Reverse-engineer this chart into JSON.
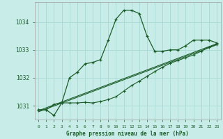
{
  "title": "Graphe pression niveau de la mer (hPa)",
  "background_color": "#c8ece8",
  "grid_color": "#a8d8d4",
  "line_color": "#1a5c28",
  "xlim": [
    -0.5,
    23.5
  ],
  "ylim": [
    1030.5,
    1034.7
  ],
  "yticks": [
    1031,
    1032,
    1033,
    1034
  ],
  "xtick_labels": [
    "0",
    "1",
    "2",
    "3",
    "4",
    "5",
    "6",
    "7",
    "8",
    "9",
    "10",
    "11",
    "12",
    "13",
    "14",
    "15",
    "16",
    "17",
    "18",
    "19",
    "20",
    "21",
    "22",
    "23"
  ],
  "series1_x": [
    0,
    1,
    2,
    3,
    4,
    5,
    6,
    7,
    8,
    9,
    10,
    11,
    12,
    13,
    14,
    15,
    16,
    17,
    18,
    19,
    20,
    21,
    22,
    23
  ],
  "series1_y": [
    1030.85,
    1030.85,
    1030.65,
    1031.1,
    1032.0,
    1032.2,
    1032.5,
    1032.55,
    1032.65,
    1033.35,
    1034.1,
    1034.42,
    1034.42,
    1034.3,
    1033.5,
    1032.95,
    1032.95,
    1033.0,
    1033.0,
    1033.15,
    1033.35,
    1033.35,
    1033.35,
    1033.25
  ],
  "series2_x": [
    0,
    1,
    2,
    3,
    4,
    5,
    6,
    7,
    8,
    9,
    10,
    11,
    12,
    13,
    14,
    15,
    16,
    17,
    18,
    19,
    20,
    21,
    22,
    23
  ],
  "series2_y": [
    1030.85,
    1030.85,
    1031.05,
    1031.1,
    1031.1,
    1031.1,
    1031.12,
    1031.1,
    1031.15,
    1031.22,
    1031.32,
    1031.52,
    1031.72,
    1031.88,
    1032.05,
    1032.22,
    1032.38,
    1032.52,
    1032.62,
    1032.72,
    1032.82,
    1032.95,
    1033.1,
    1033.2
  ],
  "series3_x": [
    0,
    23
  ],
  "series3_y": [
    1030.82,
    1033.22
  ],
  "series4_x": [
    0,
    23
  ],
  "series4_y": [
    1030.78,
    1033.18
  ]
}
